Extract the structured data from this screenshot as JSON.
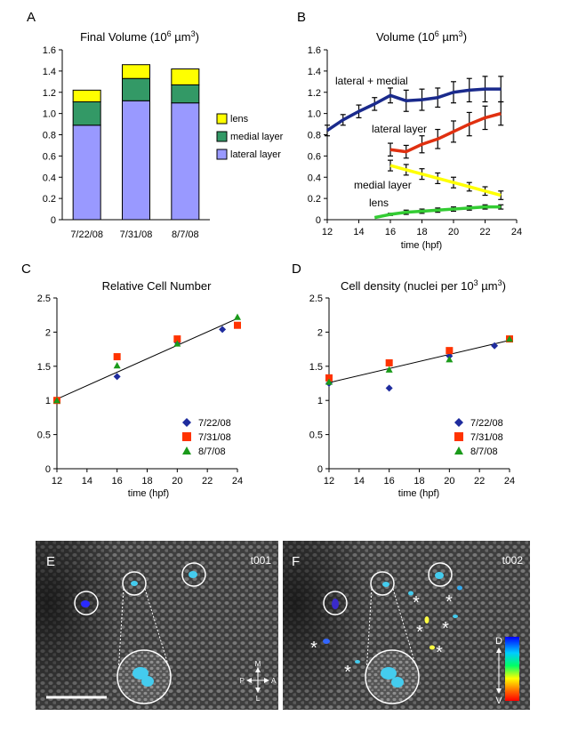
{
  "chart_data": [
    {
      "panel": "A",
      "type": "bar",
      "stacked": true,
      "title": "Final Volume (10",
      "title_sup": "6",
      "title_unit": " µm",
      "title_unit_sup": "3",
      "title_close": ")",
      "categories": [
        "7/22/08",
        "7/31/08",
        "8/7/08"
      ],
      "series": [
        {
          "name": "lateral layer",
          "values": [
            0.89,
            1.12,
            1.1
          ],
          "color": "#9999ff"
        },
        {
          "name": "medial layer",
          "values": [
            0.22,
            0.21,
            0.17
          ],
          "color": "#339966"
        },
        {
          "name": "lens",
          "values": [
            0.11,
            0.13,
            0.15
          ],
          "color": "#ffff00"
        }
      ],
      "legend_order": [
        2,
        1,
        0
      ],
      "ylim": [
        0,
        1.6
      ],
      "yticks": [
        0,
        0.2,
        0.4,
        0.6,
        0.8,
        1.0,
        1.2,
        1.4,
        1.6
      ],
      "ytick_labels": [
        "0",
        "0.2",
        "0.4",
        "0.6",
        "0.8",
        "1.0",
        "1.2",
        "1.4",
        "1.6"
      ],
      "legend_position": "right"
    },
    {
      "panel": "B",
      "type": "line",
      "title": "Volume (10",
      "title_sup": "6",
      "title_unit": " µm",
      "title_unit_sup": "3",
      "title_close": ")",
      "xlabel": "time (hpf)",
      "xlim": [
        12,
        24
      ],
      "ylim": [
        0,
        1.6
      ],
      "xticks": [
        12,
        14,
        16,
        18,
        20,
        22,
        24
      ],
      "yticks": [
        0,
        0.2,
        0.4,
        0.6,
        0.8,
        1.0,
        1.2,
        1.4,
        1.6
      ],
      "ytick_labels": [
        "0",
        "0.2",
        "0.4",
        "0.6",
        "0.8",
        "1.0",
        "1.2",
        "1.4",
        "1.6"
      ],
      "series": [
        {
          "name": "lateral + medial",
          "color": "#1a2a8c",
          "x": [
            12,
            13,
            14,
            15,
            16,
            17,
            18,
            19,
            20,
            21,
            22,
            23
          ],
          "y": [
            0.84,
            0.94,
            1.02,
            1.09,
            1.17,
            1.12,
            1.13,
            1.15,
            1.2,
            1.22,
            1.23,
            1.23
          ],
          "err": [
            0.05,
            0.05,
            0.06,
            0.06,
            0.07,
            0.1,
            0.1,
            0.09,
            0.1,
            0.11,
            0.12,
            0.12
          ]
        },
        {
          "name": "lateral layer",
          "color": "#e03010",
          "x": [
            16,
            17,
            18,
            19,
            20,
            21,
            22,
            23
          ],
          "y": [
            0.66,
            0.64,
            0.71,
            0.76,
            0.83,
            0.9,
            0.96,
            1.0
          ],
          "err": [
            0.06,
            0.06,
            0.08,
            0.09,
            0.1,
            0.11,
            0.11,
            0.11
          ]
        },
        {
          "name": "medial layer",
          "color": "#ffff00",
          "x": [
            16,
            17,
            18,
            19,
            20,
            21,
            22,
            23
          ],
          "y": [
            0.51,
            0.47,
            0.43,
            0.39,
            0.35,
            0.31,
            0.27,
            0.23
          ],
          "err": [
            0.05,
            0.05,
            0.05,
            0.05,
            0.05,
            0.04,
            0.04,
            0.04
          ]
        },
        {
          "name": "lens",
          "color": "#33cc33",
          "x": [
            15,
            16,
            17,
            18,
            19,
            20,
            21,
            22,
            23
          ],
          "y": [
            0.02,
            0.05,
            0.07,
            0.08,
            0.09,
            0.1,
            0.11,
            0.12,
            0.12
          ],
          "err": [
            0,
            0.01,
            0.02,
            0.02,
            0.02,
            0.02,
            0.02,
            0.02,
            0.02
          ]
        }
      ],
      "annotations": [
        "lateral + medial",
        "lateral layer",
        "medial layer",
        "lens"
      ]
    },
    {
      "panel": "C",
      "type": "scatter",
      "title": "Relative Cell Number",
      "xlabel": "time (hpf)",
      "xlim": [
        12,
        24
      ],
      "ylim": [
        0,
        2.5
      ],
      "xticks": [
        12,
        14,
        16,
        18,
        20,
        22,
        24
      ],
      "yticks": [
        0,
        0.5,
        1,
        1.5,
        2,
        2.5
      ],
      "ytick_labels": [
        "0",
        "0.5",
        "1",
        "1.5",
        "2",
        "2.5"
      ],
      "series": [
        {
          "name": "7/22/08",
          "marker": "diamond",
          "color": "#1f2c9e",
          "x": [
            12,
            16,
            20,
            23
          ],
          "y": [
            1.0,
            1.35,
            1.85,
            2.04
          ]
        },
        {
          "name": "7/31/08",
          "marker": "square",
          "color": "#ff3300",
          "x": [
            12,
            16,
            20,
            24
          ],
          "y": [
            1.0,
            1.64,
            1.9,
            2.1
          ]
        },
        {
          "name": "8/7/08",
          "marker": "triangle",
          "color": "#1a9a1a",
          "x": [
            12,
            16,
            20,
            24
          ],
          "y": [
            1.0,
            1.51,
            1.83,
            2.22
          ]
        }
      ],
      "trendline": {
        "x": [
          12,
          24
        ],
        "y": [
          1.02,
          2.2
        ]
      },
      "legend_position": "bottom-right"
    },
    {
      "panel": "D",
      "type": "scatter",
      "title": "Cell density (nuclei per 10",
      "title_sup": "3",
      "title_unit": " µm",
      "title_unit_sup": "3",
      "title_close": ")",
      "xlabel": "time (hpf)",
      "xlim": [
        12,
        24
      ],
      "ylim": [
        0,
        2.5
      ],
      "xticks": [
        12,
        14,
        16,
        18,
        20,
        22,
        24
      ],
      "yticks": [
        0,
        0.5,
        1,
        1.5,
        2,
        2.5
      ],
      "ytick_labels": [
        "0",
        "0.5",
        "1",
        "1.5",
        "2",
        "2.5"
      ],
      "series": [
        {
          "name": "7/22/08",
          "marker": "diamond",
          "color": "#1f2c9e",
          "x": [
            12,
            16,
            20,
            23
          ],
          "y": [
            1.25,
            1.18,
            1.65,
            1.8
          ]
        },
        {
          "name": "7/31/08",
          "marker": "square",
          "color": "#ff3300",
          "x": [
            12,
            16,
            20,
            24
          ],
          "y": [
            1.33,
            1.55,
            1.73,
            1.9
          ]
        },
        {
          "name": "8/7/08",
          "marker": "triangle",
          "color": "#1a9a1a",
          "x": [
            12,
            16,
            20,
            24
          ],
          "y": [
            1.27,
            1.45,
            1.6,
            1.9
          ]
        }
      ],
      "trendline": {
        "x": [
          12,
          24
        ],
        "y": [
          1.26,
          1.88
        ]
      },
      "legend_position": "bottom-right"
    }
  ],
  "panel_labels": [
    "A",
    "B",
    "C",
    "D",
    "E",
    "F"
  ],
  "micrographs": {
    "E": {
      "label": "E",
      "timepoint": "t001",
      "compass": {
        "top": "M",
        "bottom": "L",
        "left": "P",
        "right": "A"
      },
      "has_scale_bar": true
    },
    "F": {
      "label": "F",
      "timepoint": "t002",
      "asterisk": "*",
      "colorbar": {
        "top": "D",
        "bottom": "V"
      }
    }
  }
}
